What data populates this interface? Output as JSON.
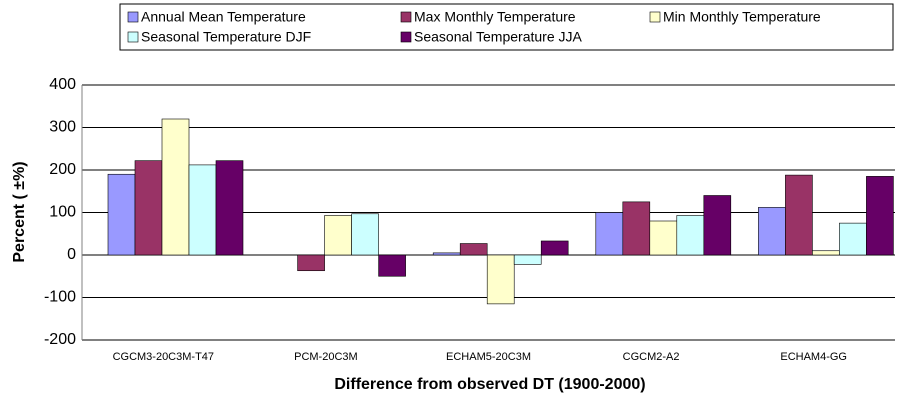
{
  "chart_data": {
    "type": "bar",
    "x_label": "Difference from observed DT (1900-2000)",
    "y_label": "Percent ( ±%)",
    "categories": [
      "CGCM3-20C3M-T47",
      "PCM-20C3M",
      "ECHAM5-20C3M",
      "CGCM2-A2",
      "ECHAM4-GG"
    ],
    "series": [
      {
        "name": "Annual Mean Temperature",
        "color": "#9999ff",
        "values": [
          190,
          0,
          5,
          100,
          112
        ]
      },
      {
        "name": "Max Monthly Temperature",
        "color": "#993366",
        "values": [
          222,
          -37,
          27,
          125,
          188
        ]
      },
      {
        "name": "Min Monthly Temperature",
        "color": "#ffffcc",
        "values": [
          320,
          93,
          -115,
          80,
          10
        ]
      },
      {
        "name": "Seasonal Temperature DJF",
        "color": "#ccffff",
        "values": [
          212,
          97,
          -22,
          93,
          75
        ]
      },
      {
        "name": "Seasonal Temperature JJA",
        "color": "#660066",
        "values": [
          222,
          -50,
          33,
          140,
          185
        ]
      }
    ],
    "ylim": [
      -200,
      400
    ],
    "yticks": [
      -200,
      -100,
      0,
      100,
      200,
      300,
      400
    ],
    "grid": true
  }
}
